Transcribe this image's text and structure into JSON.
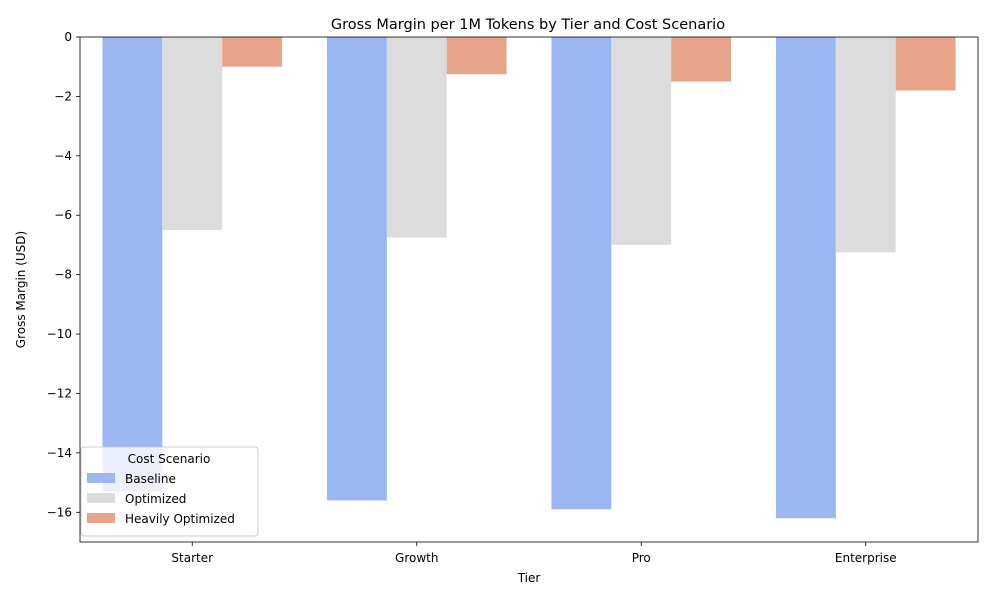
{
  "chart_data": {
    "type": "bar",
    "title": "Gross Margin per 1M Tokens by Tier and Cost Scenario",
    "xlabel": "Tier",
    "ylabel": "Gross Margin (USD)",
    "categories": [
      "Starter",
      "Growth",
      "Pro",
      "Enterprise"
    ],
    "ylim": [
      -17,
      0
    ],
    "yticks": [
      0,
      -2,
      -4,
      -6,
      -8,
      -10,
      -12,
      -14,
      -16
    ],
    "grid": false,
    "legend": {
      "title": "Cost Scenario",
      "placement": "lower-left"
    },
    "series": [
      {
        "name": "Baseline",
        "color": "#9bb6f0",
        "values": [
          -15.3,
          -15.6,
          -15.9,
          -16.2
        ]
      },
      {
        "name": "Optimized",
        "color": "#dcdcdc",
        "values": [
          -6.5,
          -6.75,
          -7.0,
          -7.25
        ]
      },
      {
        "name": "Heavily Optimized",
        "color": "#e8a48b",
        "values": [
          -1.0,
          -1.25,
          -1.5,
          -1.8
        ]
      }
    ]
  }
}
